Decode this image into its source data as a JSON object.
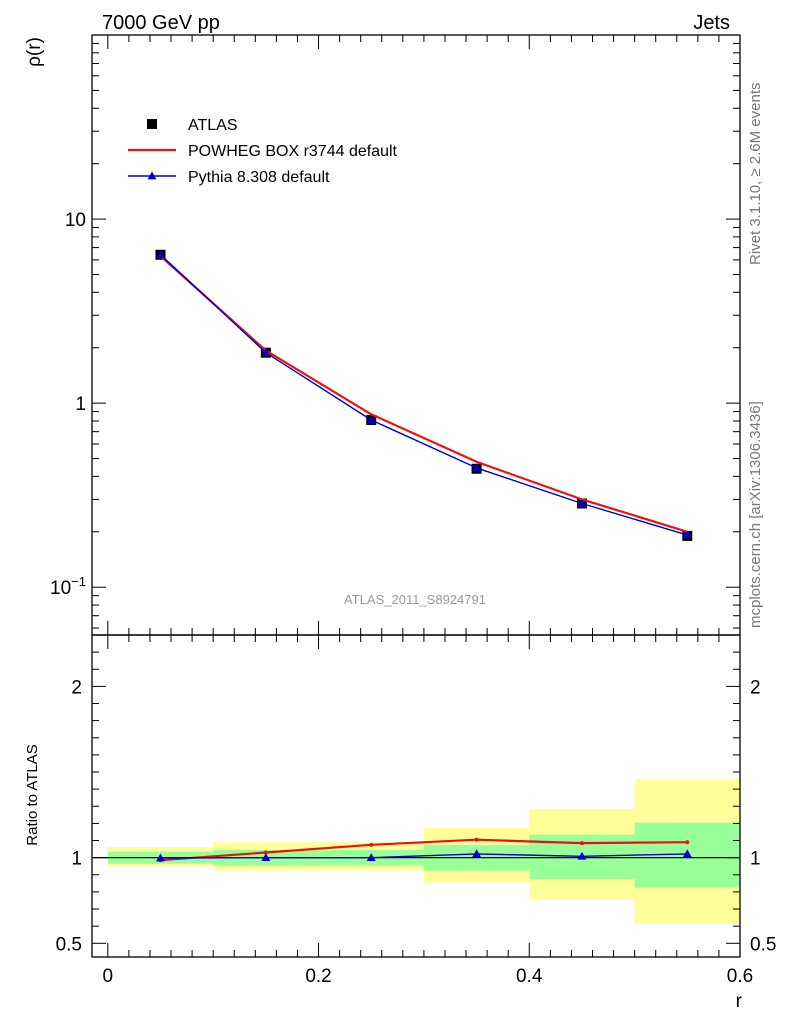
{
  "header": {
    "left": "7000 GeV pp",
    "right": "Jets"
  },
  "side_labels": {
    "rivet": "Rivet 3.1.10, ≥ 2.6M events",
    "mcplots": "mcplots.cern.ch [arXiv:1306.3436]"
  },
  "watermark": "ATLAS_2011_S8924791",
  "colors": {
    "atlas": "#000000",
    "powheg": "#ee1111",
    "pythia": "#0000cc",
    "band_inner": "#99ff99",
    "band_outer": "#ffff99"
  },
  "legend": {
    "entries": [
      {
        "key": "atlas",
        "label": "ATLAS",
        "marker": "square"
      },
      {
        "key": "powheg",
        "label": "POWHEG BOX r3744 default",
        "marker": "line"
      },
      {
        "key": "pythia",
        "label": "Pythia 8.308 default",
        "marker": "triangle"
      }
    ]
  },
  "chart_data": [
    {
      "type": "line",
      "panel": "main",
      "ylabel": "ρ(r)",
      "yscale": "log",
      "ylim": [
        0.055,
        100
      ],
      "xlim": [
        -0.015,
        0.6
      ],
      "y_tick_labels": [
        "10−1",
        "1",
        "10"
      ],
      "x": [
        0.05,
        0.15,
        0.25,
        0.35,
        0.45,
        0.55
      ],
      "x_bins": [
        [
          0.0,
          0.1
        ],
        [
          0.1,
          0.2
        ],
        [
          0.2,
          0.3
        ],
        [
          0.3,
          0.4
        ],
        [
          0.4,
          0.5
        ],
        [
          0.5,
          0.6
        ]
      ],
      "series": [
        {
          "name": "ATLAS",
          "key": "atlas",
          "values": [
            6.4,
            1.88,
            0.81,
            0.44,
            0.285,
            0.19
          ]
        },
        {
          "name": "POWHEG BOX r3744 default",
          "key": "powheg",
          "values": [
            6.3,
            1.93,
            0.87,
            0.48,
            0.3,
            0.2
          ]
        },
        {
          "name": "Pythia 8.308 default",
          "key": "pythia",
          "values": [
            6.4,
            1.88,
            0.81,
            0.445,
            0.285,
            0.192
          ]
        }
      ]
    },
    {
      "type": "line",
      "panel": "ratio",
      "ylabel": "Ratio to ATLAS",
      "xlabel": "r",
      "ylim": [
        0.42,
        2.3
      ],
      "xlim": [
        -0.015,
        0.6
      ],
      "y_tick_labels": [
        "0.5",
        "1",
        "2"
      ],
      "x_tick_labels": [
        "0",
        "0.2",
        "0.4",
        "0.6"
      ],
      "bands": [
        {
          "x0": 0.0,
          "x1": 0.1,
          "inner": [
            0.965,
            1.035
          ],
          "outer": [
            0.948,
            1.062
          ]
        },
        {
          "x0": 0.1,
          "x1": 0.2,
          "inner": [
            0.955,
            1.045
          ],
          "outer": [
            0.925,
            1.09
          ]
        },
        {
          "x0": 0.2,
          "x1": 0.3,
          "inner": [
            0.955,
            1.045
          ],
          "outer": [
            0.925,
            1.09
          ]
        },
        {
          "x0": 0.3,
          "x1": 0.4,
          "inner": [
            0.925,
            1.075
          ],
          "outer": [
            0.855,
            1.175
          ]
        },
        {
          "x0": 0.4,
          "x1": 0.5,
          "inner": [
            0.875,
            1.135
          ],
          "outer": [
            0.755,
            1.285
          ]
        },
        {
          "x0": 0.5,
          "x1": 0.6,
          "inner": [
            0.825,
            1.205
          ],
          "outer": [
            0.615,
            1.46
          ]
        }
      ],
      "reference": 1,
      "series": [
        {
          "name": "POWHEG BOX r3744 default",
          "key": "powheg",
          "values": [
            0.985,
            1.03,
            1.075,
            1.105,
            1.085,
            1.09
          ]
        },
        {
          "name": "Pythia 8.308 default",
          "key": "pythia",
          "values": [
            0.998,
            1.0,
            1.0,
            1.022,
            1.008,
            1.022
          ]
        }
      ]
    }
  ]
}
